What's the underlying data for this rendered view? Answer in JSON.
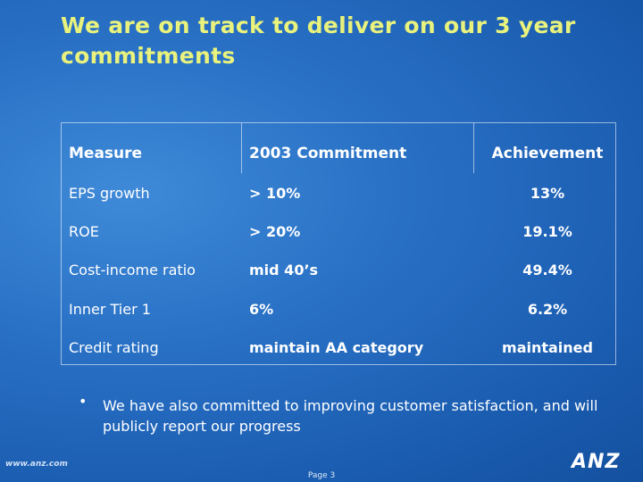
{
  "header": {
    "title": "We are on track to deliver on our 3 year commitments"
  },
  "table": {
    "columns": [
      "Measure",
      "2003 Commitment",
      "Achievement"
    ],
    "rows": [
      [
        "EPS growth",
        "> 10%",
        "13%"
      ],
      [
        "ROE",
        "> 20%",
        "19.1%"
      ],
      [
        "Cost-income ratio",
        "mid 40’s",
        "49.4%"
      ],
      [
        "Inner Tier 1",
        "6%",
        "6.2%"
      ],
      [
        "Credit rating",
        "maintain AA category",
        "maintained"
      ]
    ]
  },
  "bullet": "We have also committed to improving customer satisfaction, and will publicly report our progress",
  "footer": {
    "website": "www.anz.com",
    "page": "Page 3",
    "logo": "ANZ"
  }
}
